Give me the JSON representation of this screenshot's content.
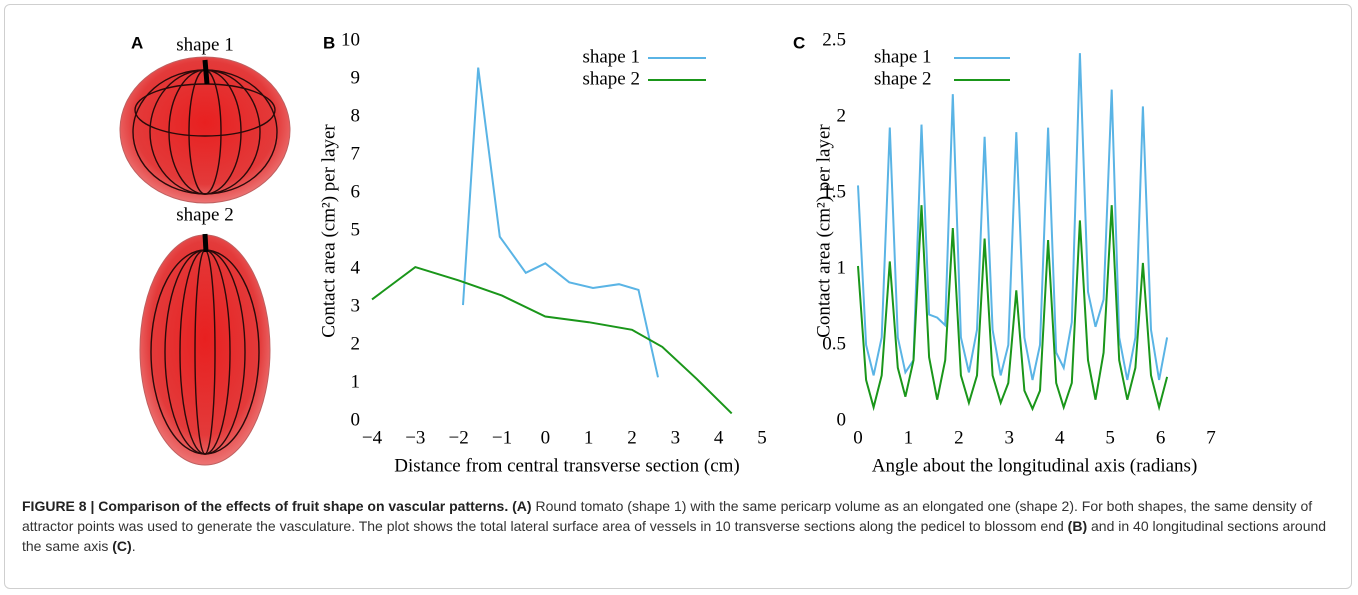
{
  "figure": {
    "panel_a": {
      "label": "A",
      "shape1": "shape 1",
      "shape2": "shape 2"
    }
  },
  "chart_data": [
    {
      "type": "line",
      "panel_label": "B",
      "xlabel": "Distance from central transverse section (cm)",
      "ylabel": "Contact area (cm²) per layer",
      "xlim": [
        -4,
        5
      ],
      "ylim": [
        0,
        10
      ],
      "xticks": [
        {
          "value": -4,
          "label": "−4"
        },
        {
          "value": -3,
          "label": "−3"
        },
        {
          "value": -2,
          "label": "−2"
        },
        {
          "value": -1,
          "label": "−1"
        },
        0,
        1,
        2,
        3,
        4,
        5
      ],
      "yticks": [
        0,
        1,
        2,
        3,
        4,
        5,
        6,
        7,
        8,
        9,
        10
      ],
      "legend": "upper right",
      "series": [
        {
          "name": "shape 1",
          "color": "#5ab4e5",
          "x": [
            -1.9,
            -1.55,
            -1.05,
            -0.45,
            0,
            0.55,
            1.1,
            1.7,
            2.15,
            2.6
          ],
          "values": [
            3.05,
            9.3,
            4.85,
            3.9,
            4.15,
            3.65,
            3.5,
            3.6,
            3.45,
            1.15
          ]
        },
        {
          "name": "shape 2",
          "color": "#1a961a",
          "x": [
            -4,
            -3,
            -2,
            -1,
            0,
            1,
            2,
            2.7,
            3.5,
            4.3
          ],
          "values": [
            3.2,
            4.05,
            3.7,
            3.3,
            2.75,
            2.6,
            2.4,
            1.95,
            1.1,
            0.2
          ]
        }
      ]
    },
    {
      "type": "line",
      "panel_label": "C",
      "xlabel": "Angle about the longitudinal axis (radians)",
      "ylabel": "Contact area (cm²) per layer",
      "xlim": [
        0,
        7
      ],
      "ylim": [
        0,
        2.5
      ],
      "xticks": [
        0,
        1,
        2,
        3,
        4,
        5,
        6,
        7
      ],
      "yticks": [
        0,
        0.5,
        1,
        1.5,
        2,
        2.5
      ],
      "legend": "upper left",
      "series": [
        {
          "name": "shape 1",
          "color": "#5ab4e5",
          "x": [
            0,
            0.16,
            0.31,
            0.47,
            0.63,
            0.79,
            0.94,
            1.1,
            1.26,
            1.41,
            1.57,
            1.73,
            1.88,
            2.04,
            2.2,
            2.36,
            2.51,
            2.67,
            2.83,
            2.98,
            3.14,
            3.3,
            3.46,
            3.61,
            3.77,
            3.93,
            4.08,
            4.24,
            4.4,
            4.56,
            4.71,
            4.87,
            5.03,
            5.18,
            5.34,
            5.5,
            5.65,
            5.81,
            5.97,
            6.13
          ],
          "values": [
            1.55,
            0.5,
            0.3,
            0.55,
            1.93,
            0.55,
            0.32,
            0.4,
            1.95,
            0.7,
            0.68,
            0.63,
            2.15,
            0.55,
            0.32,
            0.6,
            1.87,
            0.6,
            0.3,
            0.5,
            1.9,
            0.55,
            0.27,
            0.5,
            1.93,
            0.45,
            0.35,
            0.65,
            2.42,
            0.85,
            0.62,
            0.8,
            2.18,
            0.55,
            0.27,
            0.55,
            2.07,
            0.6,
            0.27,
            0.55
          ]
        },
        {
          "name": "shape 2",
          "color": "#1a961a",
          "x": [
            0,
            0.16,
            0.31,
            0.47,
            0.63,
            0.79,
            0.94,
            1.1,
            1.26,
            1.41,
            1.57,
            1.73,
            1.88,
            2.04,
            2.2,
            2.36,
            2.51,
            2.67,
            2.83,
            2.98,
            3.14,
            3.3,
            3.46,
            3.61,
            3.77,
            3.93,
            4.08,
            4.24,
            4.4,
            4.56,
            4.71,
            4.87,
            5.03,
            5.18,
            5.34,
            5.5,
            5.65,
            5.81,
            5.97,
            6.13
          ],
          "values": [
            1.02,
            0.27,
            0.09,
            0.3,
            1.05,
            0.35,
            0.16,
            0.4,
            1.42,
            0.42,
            0.14,
            0.4,
            1.27,
            0.3,
            0.12,
            0.3,
            1.2,
            0.3,
            0.12,
            0.25,
            0.86,
            0.2,
            0.08,
            0.2,
            1.19,
            0.25,
            0.09,
            0.25,
            1.32,
            0.4,
            0.14,
            0.45,
            1.42,
            0.4,
            0.14,
            0.35,
            1.04,
            0.3,
            0.09,
            0.29
          ]
        }
      ]
    }
  ],
  "caption": {
    "title": "FIGURE 8 | Comparison of the effects of fruit shape on vascular patterns.",
    "segments": [
      "(A)",
      "Round tomato (shape 1) with the same pericarp volume as an elongated one (shape 2). For both shapes, the same density of attractor points was used to generate the vasculature. The plot shows the total lateral surface area of vessels in 10 transverse sections along the pedicel to blossom end",
      "(B)",
      "and in 40 longitudinal sections around the same axis",
      "(C)",
      "."
    ]
  }
}
